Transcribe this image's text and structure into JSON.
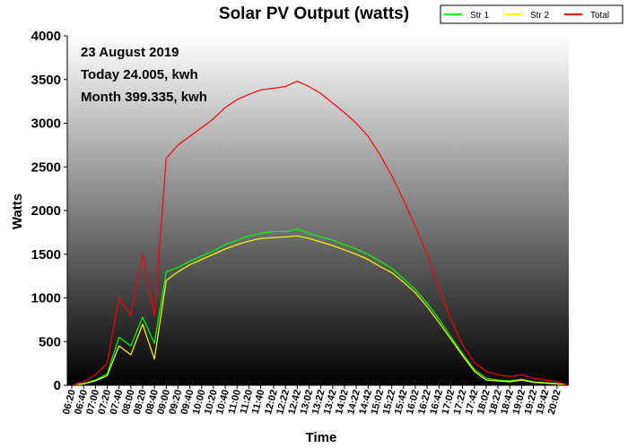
{
  "chart_data": {
    "type": "line",
    "title": "Solar PV Output (watts)",
    "xlabel": "Time",
    "ylabel": "Watts",
    "ylim": [
      0,
      4000
    ],
    "yticks": [
      0,
      500,
      1000,
      1500,
      2000,
      2500,
      3000,
      3500,
      4000
    ],
    "x_tick_labels": [
      "06:20",
      "06:40",
      "07:00",
      "07:20",
      "07:40",
      "08:00",
      "08:20",
      "08:40",
      "09:00",
      "09:20",
      "09:40",
      "10:00",
      "10:20",
      "10:40",
      "11:00",
      "11:20",
      "11:40",
      "12:02",
      "12:22",
      "12:42",
      "13:02",
      "13:22",
      "13:42",
      "14:02",
      "14:22",
      "14:42",
      "15:02",
      "15:22",
      "15:42",
      "16:02",
      "16:22",
      "16:42",
      "17:02",
      "17:22",
      "17:42",
      "18:02",
      "18:22",
      "18:42",
      "19:02",
      "19:22",
      "19:42",
      "20:02"
    ],
    "legend_position": "top-right",
    "annotations": [
      "23 August 2019",
      "Today 24.005, kwh",
      "Month 399.335, kwh"
    ],
    "series": [
      {
        "name": "Str 1",
        "color": "#00ff00",
        "x": [
          "06:20",
          "06:40",
          "07:00",
          "07:20",
          "07:40",
          "08:00",
          "08:20",
          "08:40",
          "09:00",
          "09:20",
          "09:40",
          "10:00",
          "10:20",
          "10:40",
          "11:00",
          "11:20",
          "11:40",
          "12:02",
          "12:22",
          "12:42",
          "13:02",
          "13:22",
          "13:42",
          "14:02",
          "14:22",
          "14:42",
          "15:02",
          "15:22",
          "15:42",
          "16:02",
          "16:22",
          "16:42",
          "17:02",
          "17:22",
          "17:42",
          "18:02",
          "18:22",
          "18:42",
          "19:02",
          "19:22",
          "19:42",
          "20:02",
          "20:22"
        ],
        "values": [
          0,
          20,
          60,
          130,
          550,
          450,
          780,
          480,
          1300,
          1350,
          1420,
          1480,
          1540,
          1610,
          1660,
          1710,
          1740,
          1760,
          1760,
          1790,
          1740,
          1700,
          1660,
          1610,
          1560,
          1500,
          1420,
          1340,
          1220,
          1100,
          940,
          760,
          560,
          360,
          180,
          80,
          60,
          50,
          70,
          40,
          30,
          20,
          0
        ]
      },
      {
        "name": "Str 2",
        "color": "#ffff00",
        "x": [
          "06:20",
          "06:40",
          "07:00",
          "07:20",
          "07:40",
          "08:00",
          "08:20",
          "08:40",
          "09:00",
          "09:20",
          "09:40",
          "10:00",
          "10:20",
          "10:40",
          "11:00",
          "11:20",
          "11:40",
          "12:02",
          "12:22",
          "12:42",
          "13:02",
          "13:22",
          "13:42",
          "14:02",
          "14:22",
          "14:42",
          "15:02",
          "15:22",
          "15:42",
          "16:02",
          "16:22",
          "16:42",
          "17:02",
          "17:22",
          "17:42",
          "18:02",
          "18:22",
          "18:42",
          "19:02",
          "19:22",
          "19:42",
          "20:02",
          "20:22"
        ],
        "values": [
          0,
          15,
          50,
          110,
          450,
          350,
          700,
          300,
          1200,
          1300,
          1380,
          1440,
          1500,
          1560,
          1610,
          1650,
          1680,
          1690,
          1700,
          1710,
          1680,
          1640,
          1600,
          1550,
          1500,
          1440,
          1360,
          1290,
          1180,
          1060,
          900,
          720,
          530,
          340,
          160,
          60,
          50,
          40,
          60,
          35,
          25,
          15,
          0
        ]
      },
      {
        "name": "Total",
        "color": "#ff0000",
        "x": [
          "06:20",
          "06:40",
          "07:00",
          "07:20",
          "07:40",
          "08:00",
          "08:20",
          "08:40",
          "09:00",
          "09:20",
          "09:40",
          "10:00",
          "10:20",
          "10:40",
          "11:00",
          "11:20",
          "11:40",
          "12:02",
          "12:22",
          "12:42",
          "13:02",
          "13:22",
          "13:42",
          "14:02",
          "14:22",
          "14:42",
          "15:02",
          "15:22",
          "15:42",
          "16:02",
          "16:22",
          "16:42",
          "17:02",
          "17:22",
          "17:42",
          "18:02",
          "18:22",
          "18:42",
          "19:02",
          "19:22",
          "19:42",
          "20:02",
          "20:22"
        ],
        "values": [
          0,
          40,
          120,
          250,
          1000,
          800,
          1500,
          800,
          2600,
          2750,
          2850,
          2950,
          3050,
          3180,
          3270,
          3330,
          3380,
          3400,
          3420,
          3480,
          3420,
          3340,
          3230,
          3120,
          3000,
          2850,
          2640,
          2400,
          2120,
          1820,
          1500,
          1120,
          760,
          460,
          260,
          160,
          120,
          100,
          120,
          80,
          60,
          40,
          0
        ]
      }
    ]
  }
}
